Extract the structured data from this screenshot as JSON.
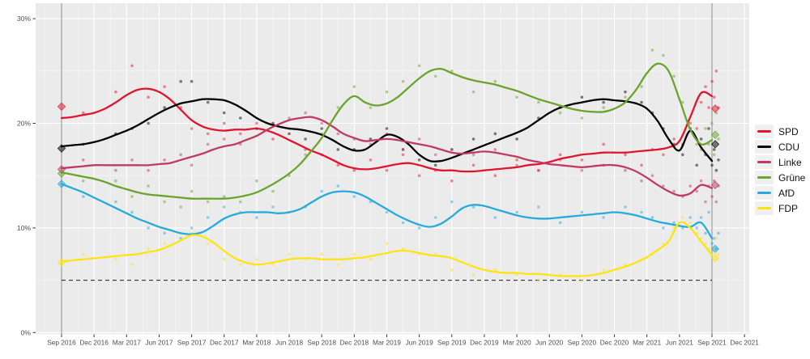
{
  "chart_data": {
    "type": "scatter",
    "title": "",
    "grid": "on",
    "legend_position": "right",
    "x_axis": {
      "tick_labels": [
        "Sep 2016",
        "Dec 2016",
        "Mar 2017",
        "Jun 2017",
        "Sep 2017",
        "Dec 2017",
        "Mar 2018",
        "Jun 2018",
        "Sep 2018",
        "Dec 2018",
        "Mar 2019",
        "Jun 2019",
        "Sep 2019",
        "Dec 2019",
        "Mar 2020",
        "Jun 2020",
        "Sep 2020",
        "Dec 2020",
        "Mar 2021",
        "Jun 2021",
        "Sep 2021",
        "Dec 2021"
      ],
      "months_per_tick": 3
    },
    "y_axis": {
      "tick_labels": [
        "0%",
        "10%",
        "20%",
        "30%"
      ],
      "tick_values": [
        0,
        10,
        20,
        30
      ],
      "minor_values": [
        5,
        15,
        25
      ],
      "ylim": [
        0,
        31.5
      ]
    },
    "threshold_line": {
      "value": 5,
      "style": "dashed"
    },
    "election_lines": [
      {
        "label": "Sep 2016",
        "m": 0
      },
      {
        "label": "Sep 2021",
        "m": 60
      }
    ],
    "series": [
      {
        "name": "SPD",
        "color": "#e0152f",
        "monthly": [
          20.5,
          20.6,
          20.8,
          21.0,
          21.4,
          22.0,
          22.7,
          23.2,
          23.3,
          23.0,
          22.3,
          21.3,
          20.3,
          19.7,
          19.4,
          19.3,
          19.4,
          19.4,
          19.5,
          19.3,
          18.9,
          18.4,
          17.9,
          17.4,
          17.0,
          16.5,
          16.0,
          15.7,
          15.6,
          15.7,
          15.9,
          16.1,
          16.2,
          16.0,
          15.7,
          15.5,
          15.5,
          15.4,
          15.4,
          15.5,
          15.6,
          15.7,
          15.8,
          16.0,
          16.1,
          16.3,
          16.6,
          16.8,
          17.0,
          17.1,
          17.2,
          17.2,
          17.2,
          17.3,
          17.4,
          17.5,
          17.7,
          18.3,
          20.6,
          22.9,
          22.6
        ],
        "election_2016": 21.6,
        "election_2021": 21.4
      },
      {
        "name": "CDU",
        "color": "#000000",
        "monthly": [
          17.8,
          17.9,
          18.0,
          18.2,
          18.5,
          18.9,
          19.3,
          19.8,
          20.4,
          21.0,
          21.5,
          21.9,
          22.1,
          22.3,
          22.3,
          22.2,
          21.8,
          21.2,
          20.5,
          20.0,
          19.7,
          19.5,
          19.4,
          19.2,
          18.9,
          18.4,
          17.8,
          17.4,
          17.5,
          18.2,
          18.9,
          18.7,
          18.0,
          17.0,
          16.4,
          16.4,
          16.7,
          17.1,
          17.5,
          17.9,
          18.3,
          18.7,
          19.1,
          19.6,
          20.3,
          21.0,
          21.5,
          21.8,
          22.0,
          22.2,
          22.3,
          22.2,
          22.1,
          21.9,
          21.4,
          20.2,
          18.5,
          17.4,
          19.3,
          17.7,
          16.4
        ],
        "election_2016": 17.6,
        "election_2021": 18.0
      },
      {
        "name": "Linke",
        "color": "#bf3b63",
        "monthly": [
          15.7,
          15.8,
          15.9,
          16.0,
          16.0,
          16.0,
          16.0,
          16.0,
          16.0,
          16.1,
          16.2,
          16.5,
          16.8,
          17.1,
          17.5,
          17.8,
          18.0,
          18.4,
          18.8,
          19.4,
          19.9,
          20.3,
          20.5,
          20.6,
          20.3,
          19.7,
          19.0,
          18.6,
          18.3,
          18.4,
          18.5,
          18.4,
          18.2,
          18.0,
          17.8,
          17.5,
          17.2,
          17.1,
          17.2,
          17.3,
          17.2,
          17.0,
          16.8,
          16.5,
          16.3,
          16.1,
          16.0,
          15.9,
          15.8,
          15.9,
          16.0,
          16.0,
          15.8,
          15.4,
          14.8,
          14.1,
          13.5,
          13.1,
          13.3,
          14.1,
          13.8
        ],
        "election_2016": 15.6,
        "election_2021": 14.1
      },
      {
        "name": "Grüne",
        "color": "#6ca32c",
        "monthly": [
          15.3,
          15.1,
          14.9,
          14.7,
          14.4,
          14.0,
          13.7,
          13.4,
          13.2,
          13.1,
          13.0,
          12.9,
          12.8,
          12.8,
          12.8,
          12.8,
          12.9,
          13.1,
          13.4,
          13.9,
          14.5,
          15.2,
          16.1,
          17.3,
          18.6,
          20.3,
          21.8,
          22.6,
          22.0,
          21.7,
          21.9,
          22.5,
          23.4,
          24.3,
          25.0,
          25.2,
          24.8,
          24.4,
          24.1,
          23.9,
          23.7,
          23.4,
          23.1,
          22.7,
          22.3,
          22.0,
          21.7,
          21.4,
          21.2,
          21.1,
          21.1,
          21.4,
          22.0,
          23.2,
          24.8,
          25.7,
          25.0,
          22.3,
          19.4,
          18.0,
          18.4
        ],
        "election_2016": 15.2,
        "election_2021": 18.9
      },
      {
        "name": "AfD",
        "color": "#27aadc",
        "monthly": [
          14.2,
          13.8,
          13.4,
          12.9,
          12.4,
          11.9,
          11.4,
          10.9,
          10.5,
          10.1,
          9.8,
          9.5,
          9.4,
          9.6,
          10.2,
          10.9,
          11.3,
          11.5,
          11.5,
          11.5,
          11.4,
          11.5,
          11.8,
          12.4,
          13.0,
          13.4,
          13.5,
          13.4,
          13.0,
          12.4,
          11.8,
          11.2,
          10.7,
          10.3,
          10.1,
          10.4,
          11.1,
          11.9,
          12.2,
          12.1,
          11.8,
          11.5,
          11.2,
          11.0,
          10.9,
          10.9,
          11.0,
          11.1,
          11.2,
          11.3,
          11.4,
          11.5,
          11.4,
          11.2,
          10.9,
          10.6,
          10.4,
          10.2,
          10.1,
          10.5,
          9.0
        ],
        "election_2016": 14.2,
        "election_2021": 8.0
      },
      {
        "name": "FDP",
        "color": "#ffe412",
        "monthly": [
          6.8,
          6.9,
          7.0,
          7.1,
          7.2,
          7.3,
          7.4,
          7.5,
          7.7,
          7.9,
          8.3,
          8.8,
          9.3,
          9.2,
          8.6,
          7.8,
          7.1,
          6.7,
          6.5,
          6.6,
          6.8,
          7.0,
          7.1,
          7.1,
          7.0,
          7.0,
          7.0,
          7.1,
          7.2,
          7.4,
          7.6,
          7.8,
          7.8,
          7.6,
          7.4,
          7.3,
          7.1,
          6.7,
          6.3,
          6.0,
          5.8,
          5.7,
          5.7,
          5.6,
          5.6,
          5.5,
          5.4,
          5.4,
          5.4,
          5.5,
          5.7,
          6.0,
          6.3,
          6.7,
          7.2,
          7.9,
          8.7,
          10.5,
          10.0,
          8.7,
          7.4
        ],
        "election_2016": 6.7,
        "election_2021": 7.1
      }
    ],
    "polls": [
      [
        2,
        21,
        18,
        16.5,
        14.5,
        13,
        7.5
      ],
      [
        5,
        23,
        19,
        15.5,
        14.5,
        12.5,
        7
      ],
      [
        6.5,
        25.5,
        19.5,
        16.5,
        13,
        11.5,
        6.5
      ],
      [
        8,
        22.5,
        20,
        15.5,
        14,
        10,
        8
      ],
      [
        9.5,
        23.5,
        21.5,
        16.5,
        12.5,
        9.5,
        8.5
      ],
      [
        11,
        21.5,
        24,
        17,
        12,
        9,
        9.5
      ],
      [
        12,
        19.5,
        24,
        16,
        13.5,
        10,
        9.5
      ],
      [
        13.5,
        19,
        22,
        18,
        12.5,
        11,
        8.5
      ],
      [
        15,
        20,
        21,
        18.5,
        13,
        12,
        7
      ],
      [
        16.5,
        19,
        20.5,
        18,
        12.5,
        11.5,
        6.5
      ],
      [
        18,
        20,
        19.5,
        19.5,
        14.5,
        11,
        7
      ],
      [
        19.5,
        18.5,
        20,
        20,
        13.5,
        12,
        6.5
      ],
      [
        21,
        19.5,
        19,
        20.5,
        15,
        11.5,
        7.5
      ],
      [
        22.5,
        17.5,
        18.5,
        21,
        17,
        12,
        7
      ],
      [
        24,
        17,
        19.5,
        20,
        19,
        13.5,
        7.5
      ],
      [
        25.5,
        16,
        17.5,
        19,
        21.5,
        14,
        6.5
      ],
      [
        27,
        15.5,
        17.5,
        18.5,
        23.5,
        13,
        7.5
      ],
      [
        28.5,
        16.5,
        18.5,
        18,
        21.5,
        12.5,
        7
      ],
      [
        30,
        15.5,
        19.5,
        19,
        23,
        11.5,
        8.5
      ],
      [
        31.5,
        17,
        17.5,
        17.5,
        24,
        10.5,
        8
      ],
      [
        33,
        15,
        16.5,
        18.5,
        25.5,
        10,
        7.5
      ],
      [
        34.5,
        15.5,
        16,
        17,
        24.5,
        11,
        7.5
      ],
      [
        36,
        14.5,
        17.5,
        17.5,
        25,
        12.5,
        6
      ],
      [
        38,
        16,
        18.5,
        17,
        23,
        12,
        5.5
      ],
      [
        40,
        15,
        19,
        17.5,
        24,
        11,
        6
      ],
      [
        42,
        16.5,
        18.5,
        16,
        22.5,
        11.5,
        5.5
      ],
      [
        44,
        15.5,
        20.5,
        15.5,
        22,
        12,
        5
      ],
      [
        46,
        17,
        21.5,
        16.5,
        21,
        10.5,
        5.5
      ],
      [
        48,
        16.5,
        22.5,
        15.5,
        20.5,
        11.5,
        5
      ],
      [
        50,
        18,
        22,
        16,
        21.5,
        11,
        6
      ],
      [
        52,
        17,
        23,
        15.5,
        22.5,
        12,
        6.5
      ],
      [
        53.5,
        16,
        22,
        14.5,
        23.5,
        11.5,
        7
      ],
      [
        54.5,
        17.5,
        21,
        15,
        27,
        11,
        7.5
      ],
      [
        55.5,
        17,
        19.5,
        14,
        26.5,
        10,
        8.5
      ],
      [
        56.5,
        18.5,
        18,
        13.5,
        24.5,
        10.5,
        10
      ],
      [
        57.3,
        18,
        17,
        13,
        22,
        10,
        11
      ],
      [
        58,
        20,
        19.5,
        14,
        19.5,
        11,
        10.5
      ],
      [
        58.6,
        19.5,
        16,
        13.5,
        18,
        10,
        9.5
      ],
      [
        59,
        22,
        18.5,
        14.5,
        17.5,
        11,
        9
      ],
      [
        59.4,
        23.5,
        17,
        12.5,
        19.5,
        9.5,
        8.5
      ],
      [
        59.7,
        21.5,
        19.5,
        14,
        18,
        11.5,
        8
      ],
      [
        60,
        24,
        16,
        13,
        20,
        8.5,
        7.5
      ],
      [
        60.2,
        22.5,
        17.5,
        14.5,
        17,
        9,
        8
      ],
      [
        60.4,
        25,
        15.5,
        12.5,
        21,
        8,
        9
      ],
      [
        60.6,
        21.5,
        16.5,
        14,
        18.5,
        9.5,
        7.5
      ]
    ],
    "colors": {
      "panel_background": "#ebebeb",
      "major_grid": "#ffffff",
      "minor_grid": "#f6f6f6",
      "election_line": "#a3a3a3",
      "threshold": "#1a1a1a",
      "axis_text": "#4d4d4d",
      "tick_mark": "#333333"
    }
  }
}
